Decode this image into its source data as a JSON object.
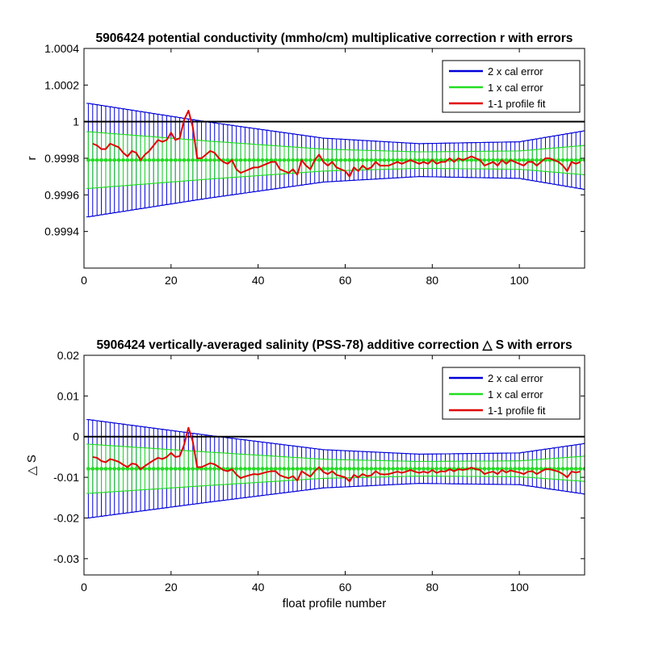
{
  "chart_data": [
    {
      "type": "line",
      "title": "5906424 potential conductivity (mmho/cm) multiplicative correction r with errors",
      "xlabel": "",
      "ylabel": "r",
      "xlim": [
        0,
        115
      ],
      "ylim": [
        0.9992,
        1.0004
      ],
      "xticks": [
        0,
        20,
        40,
        60,
        80,
        100
      ],
      "xtick_labels": [
        "0",
        "20",
        "40",
        "60",
        "80",
        "100"
      ],
      "yticks": [
        0.9994,
        0.9996,
        0.9998,
        1.0,
        1.0002,
        1.0004
      ],
      "ytick_labels": [
        "0.9994",
        "0.9996",
        "0.9998",
        "1",
        "1.0002",
        "1.0004"
      ],
      "legend_position": "top-right",
      "reference_line": 1.0,
      "fit": {
        "center": 0.99979,
        "err2_at": [
          [
            1,
            0.00031
          ],
          [
            28,
            0.00021
          ],
          [
            55,
            0.00012
          ],
          [
            77,
            9e-05
          ],
          [
            100,
            0.0001
          ],
          [
            115,
            0.00016
          ]
        ]
      },
      "series": [
        {
          "name": "2 x cal error",
          "color": "#0000d8",
          "type": "errorbar",
          "multiplier": 2
        },
        {
          "name": "1 x cal error",
          "color": "#22dd22",
          "type": "errorbar",
          "multiplier": 1
        },
        {
          "name": "1-1 profile fit",
          "color": "#e00000",
          "type": "line",
          "x": [
            2,
            3,
            4,
            5,
            6,
            7,
            8,
            9,
            10,
            11,
            12,
            13,
            14,
            15,
            16,
            17,
            18,
            19,
            20,
            21,
            22,
            23,
            24,
            25,
            26,
            27,
            28,
            29,
            30,
            31,
            32,
            33,
            34,
            35,
            36,
            37,
            38,
            39,
            40,
            41,
            42,
            43,
            44,
            45,
            46,
            47,
            48,
            49,
            50,
            51,
            52,
            53,
            54,
            55,
            56,
            57,
            58,
            59,
            60,
            61,
            62,
            63,
            64,
            65,
            66,
            67,
            68,
            69,
            70,
            71,
            72,
            73,
            74,
            75,
            76,
            77,
            78,
            79,
            80,
            81,
            82,
            83,
            84,
            85,
            86,
            87,
            88,
            89,
            90,
            91,
            92,
            93,
            94,
            95,
            96,
            97,
            98,
            99,
            100,
            101,
            102,
            103,
            104,
            105,
            106,
            107,
            108,
            109,
            110,
            111,
            112,
            113,
            114
          ],
          "y": [
            0.99988,
            0.99987,
            0.99985,
            0.99985,
            0.99988,
            0.99987,
            0.99986,
            0.99983,
            0.99981,
            0.99984,
            0.99983,
            0.99979,
            0.99982,
            0.99984,
            0.99987,
            0.9999,
            0.99989,
            0.9999,
            0.99994,
            0.9999,
            0.99991,
            1.00001,
            1.00006,
            0.99997,
            0.9998,
            0.9998,
            0.99982,
            0.99984,
            0.99983,
            0.9998,
            0.99978,
            0.99977,
            0.99979,
            0.99974,
            0.99972,
            0.99973,
            0.99974,
            0.99975,
            0.99975,
            0.99976,
            0.99977,
            0.99978,
            0.99978,
            0.99974,
            0.99973,
            0.99972,
            0.99974,
            0.99971,
            0.99979,
            0.99976,
            0.99974,
            0.99979,
            0.99982,
            0.99978,
            0.99976,
            0.99978,
            0.99975,
            0.99974,
            0.99973,
            0.9997,
            0.99975,
            0.99973,
            0.99976,
            0.99974,
            0.99975,
            0.99978,
            0.99976,
            0.99976,
            0.99976,
            0.99977,
            0.99978,
            0.99977,
            0.99978,
            0.99979,
            0.99978,
            0.99977,
            0.99978,
            0.99977,
            0.99979,
            0.99977,
            0.99978,
            0.99978,
            0.9998,
            0.99978,
            0.9998,
            0.99979,
            0.9998,
            0.99981,
            0.9998,
            0.99979,
            0.99976,
            0.99977,
            0.99978,
            0.99976,
            0.99979,
            0.99977,
            0.99979,
            0.99978,
            0.99977,
            0.99976,
            0.99978,
            0.99978,
            0.99976,
            0.99978,
            0.9998,
            0.9998,
            0.99979,
            0.99978,
            0.99976,
            0.99973,
            0.99978,
            0.99977,
            0.99978
          ]
        }
      ]
    },
    {
      "type": "line",
      "title": "5906424 vertically-averaged salinity (PSS-78) additive correction △ S with errors",
      "xlabel": "float profile number",
      "ylabel": "△ S",
      "xlim": [
        0,
        115
      ],
      "ylim": [
        -0.034,
        0.02
      ],
      "xticks": [
        0,
        20,
        40,
        60,
        80,
        100
      ],
      "xtick_labels": [
        "0",
        "20",
        "40",
        "60",
        "80",
        "100"
      ],
      "yticks": [
        -0.03,
        -0.02,
        -0.01,
        0,
        0.01,
        0.02
      ],
      "ytick_labels": [
        "-0.03",
        "-0.02",
        "-0.01",
        "0",
        "0.01",
        "0.02"
      ],
      "legend_position": "top-right",
      "reference_line": 0,
      "fit": {
        "center": -0.0079,
        "err2_at": [
          [
            1,
            0.0121
          ],
          [
            28,
            0.0083
          ],
          [
            55,
            0.0047
          ],
          [
            77,
            0.0036
          ],
          [
            100,
            0.0039
          ],
          [
            115,
            0.0062
          ]
        ]
      },
      "series": [
        {
          "name": "2 x cal error",
          "color": "#0000d8",
          "type": "errorbar",
          "multiplier": 2
        },
        {
          "name": "1 x cal error",
          "color": "#22dd22",
          "type": "errorbar",
          "multiplier": 1
        },
        {
          "name": "1-1 profile fit",
          "color": "#e00000",
          "type": "line",
          "x": [
            2,
            3,
            4,
            5,
            6,
            7,
            8,
            9,
            10,
            11,
            12,
            13,
            14,
            15,
            16,
            17,
            18,
            19,
            20,
            21,
            22,
            23,
            24,
            25,
            26,
            27,
            28,
            29,
            30,
            31,
            32,
            33,
            34,
            35,
            36,
            37,
            38,
            39,
            40,
            41,
            42,
            43,
            44,
            45,
            46,
            47,
            48,
            49,
            50,
            51,
            52,
            53,
            54,
            55,
            56,
            57,
            58,
            59,
            60,
            61,
            62,
            63,
            64,
            65,
            66,
            67,
            68,
            69,
            70,
            71,
            72,
            73,
            74,
            75,
            76,
            77,
            78,
            79,
            80,
            81,
            82,
            83,
            84,
            85,
            86,
            87,
            88,
            89,
            90,
            91,
            92,
            93,
            94,
            95,
            96,
            97,
            98,
            99,
            100,
            101,
            102,
            103,
            104,
            105,
            106,
            107,
            108,
            109,
            110,
            111,
            112,
            113,
            114
          ],
          "y": [
            -0.005,
            -0.0052,
            -0.006,
            -0.0063,
            -0.0055,
            -0.0058,
            -0.0062,
            -0.0069,
            -0.0075,
            -0.0066,
            -0.0068,
            -0.008,
            -0.0072,
            -0.0065,
            -0.0058,
            -0.0052,
            -0.0055,
            -0.005,
            -0.004,
            -0.005,
            -0.0048,
            -0.002,
            0.0022,
            -0.0012,
            -0.0075,
            -0.0075,
            -0.007,
            -0.0065,
            -0.0068,
            -0.0075,
            -0.0082,
            -0.0085,
            -0.008,
            -0.0093,
            -0.0102,
            -0.0098,
            -0.0095,
            -0.0092,
            -0.0093,
            -0.009,
            -0.0087,
            -0.0085,
            -0.0085,
            -0.0095,
            -0.0099,
            -0.0102,
            -0.0097,
            -0.0108,
            -0.0085,
            -0.0092,
            -0.0098,
            -0.0085,
            -0.0075,
            -0.0087,
            -0.0092,
            -0.0085,
            -0.0094,
            -0.0097,
            -0.01,
            -0.011,
            -0.0094,
            -0.01,
            -0.0092,
            -0.0097,
            -0.0095,
            -0.0085,
            -0.0092,
            -0.0093,
            -0.0092,
            -0.0089,
            -0.0086,
            -0.0089,
            -0.0086,
            -0.0082,
            -0.0086,
            -0.0089,
            -0.0086,
            -0.0089,
            -0.0082,
            -0.0089,
            -0.0085,
            -0.0086,
            -0.008,
            -0.0085,
            -0.008,
            -0.0082,
            -0.008,
            -0.0076,
            -0.008,
            -0.0082,
            -0.0092,
            -0.0088,
            -0.0086,
            -0.0092,
            -0.0082,
            -0.0088,
            -0.0083,
            -0.0086,
            -0.0088,
            -0.0092,
            -0.0086,
            -0.0085,
            -0.0092,
            -0.0086,
            -0.008,
            -0.008,
            -0.0083,
            -0.0086,
            -0.0092,
            -0.01,
            -0.0086,
            -0.0088,
            -0.0086
          ]
        }
      ]
    }
  ]
}
